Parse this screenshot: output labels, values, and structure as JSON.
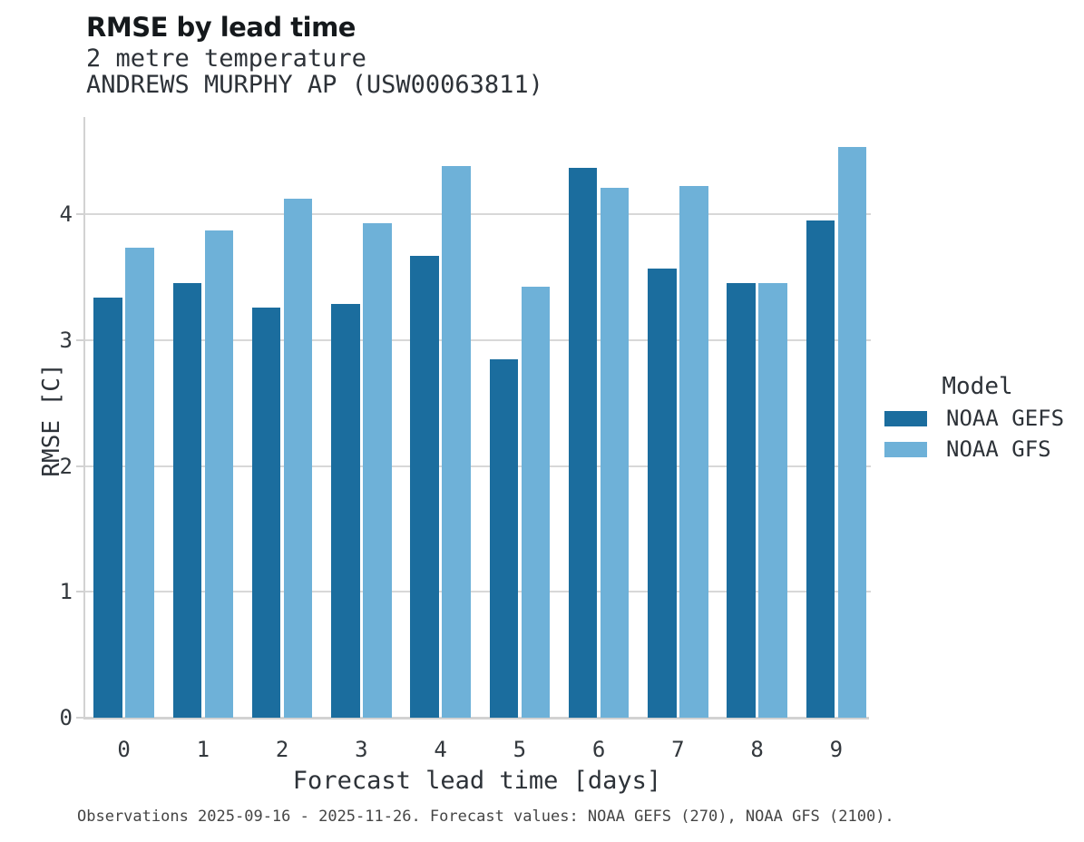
{
  "header": {
    "title": "RMSE by lead time",
    "subtitle_line1": "2 metre temperature",
    "subtitle_line2": "ANDREWS MURPHY AP (USW00063811)"
  },
  "legend": {
    "title": "Model",
    "entries": [
      {
        "label": "NOAA GEFS",
        "color": "#1b6d9e"
      },
      {
        "label": "NOAA GFS",
        "color": "#6eb1d8"
      }
    ]
  },
  "footer": {
    "text": "Observations 2025-09-16 - 2025-11-26. Forecast values: NOAA GEFS (270), NOAA GFS (2100)."
  },
  "colors": {
    "gefs_bar": "#1b6d9e",
    "gfs_bar": "#6eb1d8",
    "gridline": "#d8d8d8",
    "axis_spine": "#d2d2d2",
    "text": "#2d3238"
  },
  "chart_data": {
    "type": "bar",
    "title": "RMSE by lead time",
    "subtitle": [
      "2 metre temperature",
      "ANDREWS MURPHY AP (USW00063811)"
    ],
    "categories": [
      "0",
      "1",
      "2",
      "3",
      "4",
      "5",
      "6",
      "7",
      "8",
      "9"
    ],
    "series": [
      {
        "name": "NOAA GEFS",
        "color": "#1b6d9e",
        "values": [
          3.34,
          3.45,
          3.26,
          3.29,
          3.67,
          2.85,
          4.37,
          3.57,
          3.45,
          3.95
        ]
      },
      {
        "name": "NOAA GFS",
        "color": "#6eb1d8",
        "values": [
          3.73,
          3.87,
          4.12,
          3.93,
          4.38,
          3.42,
          4.21,
          4.22,
          3.45,
          4.53
        ]
      }
    ],
    "xlabel": "Forecast lead time [days]",
    "ylabel": "RMSE [C]",
    "ylim": [
      0,
      4.78
    ],
    "yticks": [
      0,
      1,
      2,
      3,
      4
    ],
    "grid": "horizontal",
    "legend_title": "Model",
    "legend_position": "right",
    "caption": "Observations 2025-09-16 - 2025-11-26. Forecast values: NOAA GEFS (270), NOAA GFS (2100)."
  }
}
